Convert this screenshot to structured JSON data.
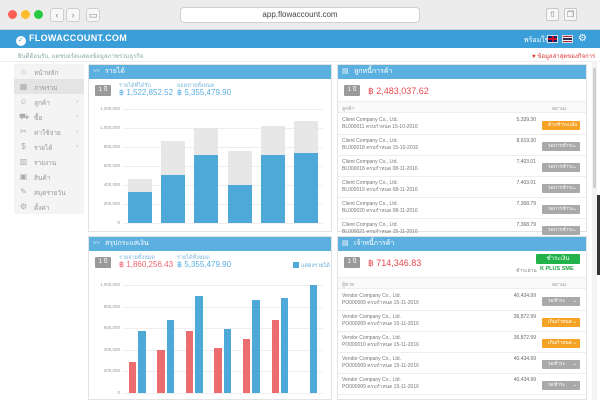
{
  "browser": {
    "url": "app.flowaccount.com"
  },
  "app": {
    "logo_text": "FLOWACCOUNT.COM",
    "user_text": "พร้อมใช้",
    "subbar_text": "ยินดีต้อนรับ, แดชบอร์ดแสดงข้อมูลภาพรวมธุรกิจ",
    "subbar_right": "ข้อมูลล่าสุดของกิจการ"
  },
  "sidebar": {
    "items": [
      {
        "label": "หน้าหลัก",
        "icon": "home-icon"
      },
      {
        "label": "ภาพรวม",
        "icon": "dashboard-icon"
      },
      {
        "label": "ลูกค้า",
        "icon": "customer-icon"
      },
      {
        "label": "ซื้อ",
        "icon": "purchase-icon"
      },
      {
        "label": "ค่าใช้จ่าย",
        "icon": "expense-icon"
      },
      {
        "label": "รายได้",
        "icon": "income-icon"
      },
      {
        "label": "รายงาน",
        "icon": "report-icon"
      },
      {
        "label": "สินค้า",
        "icon": "product-icon"
      },
      {
        "label": "สมุดรายวัน",
        "icon": "journal-icon"
      },
      {
        "label": "ตั้งค่า",
        "icon": "settings-icon"
      }
    ]
  },
  "revenue_panel": {
    "title": "รายได้",
    "period": "1 ปี",
    "label_a": "รายได้ที่ได้รับ",
    "value_a": "฿ 1,522,852.52",
    "label_b": "ยอดขายทั้งหมด",
    "value_b": "฿ 5,355,479.90",
    "y_ticks": [
      "1,200,000",
      "1,000,000",
      "800,000",
      "600,000",
      "400,000",
      "200,000",
      "0"
    ]
  },
  "cashflow_panel": {
    "title": "สรุปกระแสเงิน",
    "period": "1 ปี",
    "label_a": "รายจ่ายทั้งหมด",
    "value_a": "฿ 1,860,256.43",
    "label_b": "รายได้ทั้งหมด",
    "value_b": "฿ 5,355,479.90",
    "checkbox_label": "แสดงรายได้",
    "y_ticks": [
      "1,000,000",
      "800,000",
      "600,000",
      "400,000",
      "200,000",
      "0"
    ]
  },
  "receivable_panel": {
    "title": "ลูกหนี้การค้า",
    "period": "1 ปี",
    "total": "฿ 2,483,037.62",
    "col_left": "ลูกค้า",
    "col_right": "สถานะ",
    "rows": [
      {
        "name": "Client Company Co., Ltd.",
        "doc": "BL000011 ครบกำหนด 15-10-2016",
        "amount": "5,339.30",
        "status": "ค้างชำระแล้ว",
        "tone": "orange"
      },
      {
        "name": "Client Company Co., Ltd.",
        "doc": "BL000018 ครบกำหนด 15-10-2016",
        "amount": "8,619.30",
        "status": "รอการชำระ",
        "tone": "gray"
      },
      {
        "name": "Client Company Co., Ltd.",
        "doc": "BL000018 ครบกำหนด 08-11-2016",
        "amount": "7,403.01",
        "status": "รอการชำระ",
        "tone": "gray"
      },
      {
        "name": "Client Company Co., Ltd.",
        "doc": "BL000019 ครบกำหนด 08-11-2016",
        "amount": "7,403.01",
        "status": "รอการชำระ",
        "tone": "gray"
      },
      {
        "name": "Client Company Co., Ltd.",
        "doc": "BL000020 ครบกำหนด 08-11-2016",
        "amount": "7,368.79",
        "status": "รอการชำระ",
        "tone": "gray"
      },
      {
        "name": "Client Company Co., Ltd.",
        "doc": "BL000021 ครบกำหนด 15-11-2016",
        "amount": "7,368.79",
        "status": "รอการชำระ",
        "tone": "gray"
      }
    ]
  },
  "payable_panel": {
    "title": "เจ้าหนี้การค้า",
    "period": "1 ปี",
    "total": "฿ 714,346.83",
    "green_button": "ชำระเงินออนไลน์",
    "kplus_prefix": "ชำระผ่าน",
    "kplus_label": "K PLUS SME",
    "col_left": "ผู้ขาย",
    "col_right": "สถานะ",
    "rows": [
      {
        "name": "Vendor Company Co., Ltd.",
        "doc": "PO000009 ครบกำหนด 15-11-2016",
        "amount": "40,434.99",
        "status": "รอชำระ",
        "tone": "gray"
      },
      {
        "name": "Vendor Company Co., Ltd.",
        "doc": "PO000009 ครบกำหนด 15-11-2016",
        "amount": "36,872.99",
        "status": "เกินกำหนด",
        "tone": "orange"
      },
      {
        "name": "Vendor Company Co., Ltd.",
        "doc": "PO000010 ครบกำหนด 15-11-2016",
        "amount": "36,872.99",
        "status": "เกินกำหนด",
        "tone": "orange"
      },
      {
        "name": "Vendor Company Co., Ltd.",
        "doc": "PO000009 ครบกำหนด 15-11-2016",
        "amount": "40,434.99",
        "status": "รอชำระ",
        "tone": "gray"
      },
      {
        "name": "Vendor Company Co., Ltd.",
        "doc": "PO000009 ครบกำหนด 15-11-2016",
        "amount": "40,434.99",
        "status": "รอชำระ",
        "tone": "gray"
      }
    ]
  },
  "chart_data": [
    {
      "type": "bar",
      "ylim": [
        0,
        1200000
      ],
      "categories": [
        "1",
        "2",
        "3",
        "4",
        "5",
        "6"
      ],
      "series": [
        {
          "values": [
            460000,
            860000,
            1000000,
            760000,
            1020000,
            1070000
          ]
        },
        {
          "values": [
            330000,
            510000,
            720000,
            400000,
            720000,
            740000
          ]
        }
      ],
      "colors": [
        "#e7e7e7",
        "#4ea8d8"
      ]
    },
    {
      "type": "bar",
      "ylim": [
        0,
        1000000
      ],
      "categories": [
        "1",
        "2",
        "3",
        "4",
        "5",
        "6",
        "7"
      ],
      "series": [
        {
          "values": [
            290000,
            400000,
            570000,
            420000,
            500000,
            680000,
            0
          ]
        },
        {
          "values": [
            570000,
            680000,
            900000,
            590000,
            860000,
            880000,
            1000000
          ]
        }
      ],
      "colors": [
        "#ec6d6f",
        "#4ea8d8"
      ]
    }
  ]
}
